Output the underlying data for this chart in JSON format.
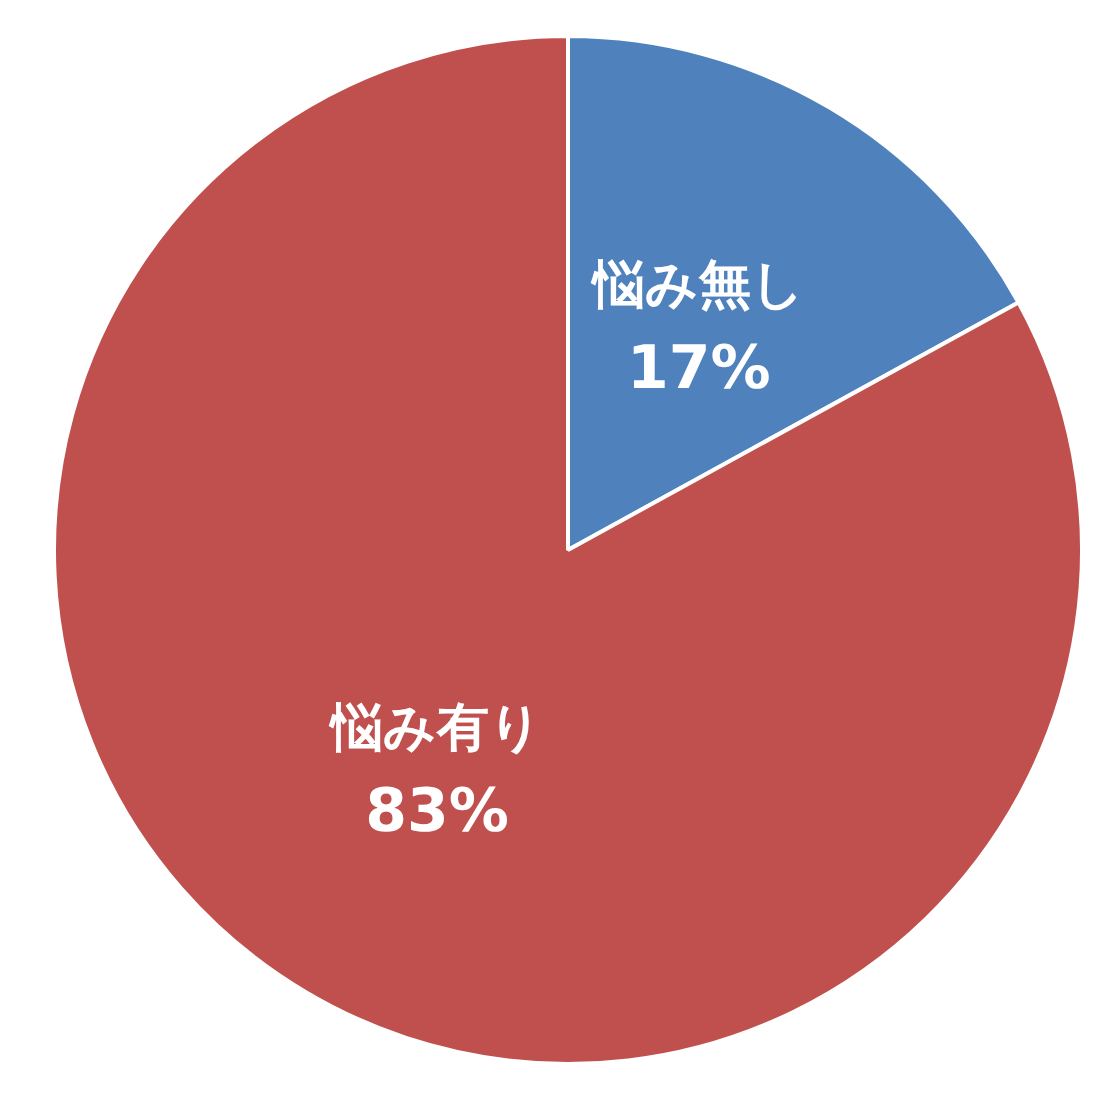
{
  "chart_data": {
    "type": "pie",
    "categories": [
      "悩み無し",
      "悩み有り"
    ],
    "values": [
      17,
      83
    ],
    "colors": [
      "#4f81bd",
      "#c0504d"
    ],
    "value_labels": [
      "17%",
      "83%"
    ],
    "legend": false
  }
}
